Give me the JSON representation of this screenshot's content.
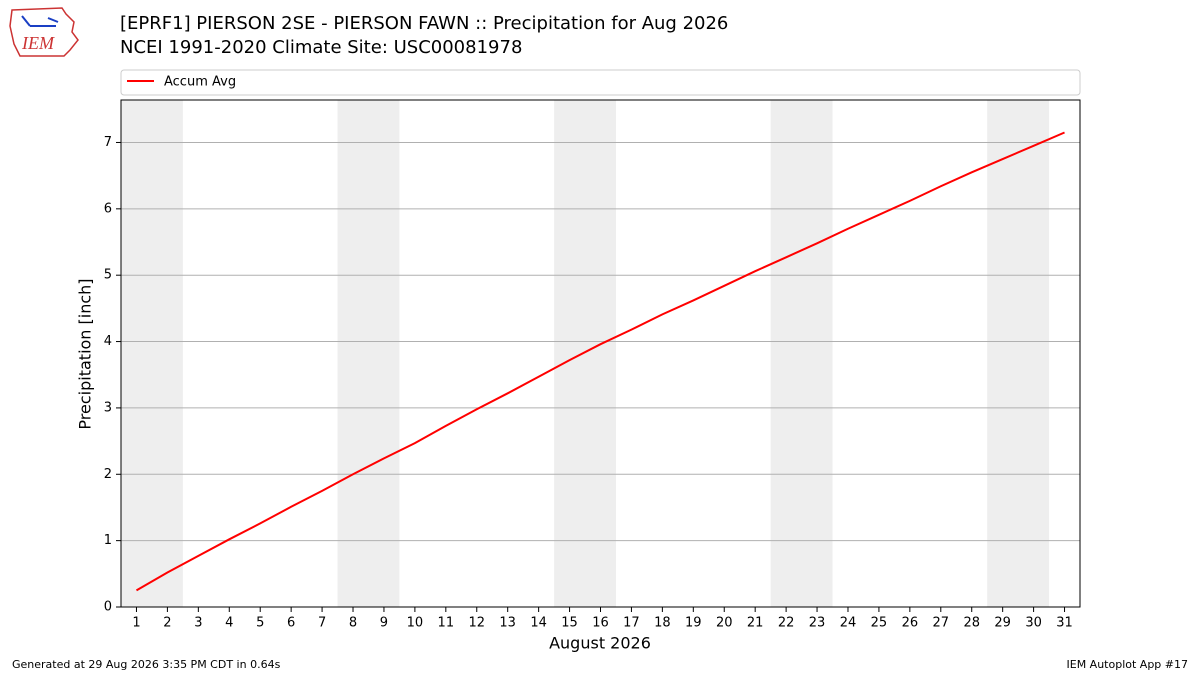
{
  "logo_text": "IEM",
  "footer_left": "Generated at 29 Aug 2026 3:35 PM CDT in 0.64s",
  "footer_right": "IEM Autoplot App #17",
  "chart_data": {
    "type": "line",
    "title": "[EPRF1] PIERSON 2SE - PIERSON FAWN :: Precipitation for Aug 2026",
    "subtitle": "NCEI 1991-2020 Climate Site: USC00081978",
    "x_label": "August 2026",
    "y_label": "Precipitation [inch]",
    "x": [
      1,
      2,
      3,
      4,
      5,
      6,
      7,
      8,
      9,
      10,
      11,
      12,
      13,
      14,
      15,
      16,
      17,
      18,
      19,
      20,
      21,
      22,
      23,
      24,
      25,
      26,
      27,
      28,
      29,
      30,
      31
    ],
    "series": [
      {
        "name": "Accum Avg",
        "color": "#ff0000",
        "values": [
          0.25,
          0.52,
          0.77,
          1.02,
          1.26,
          1.51,
          1.75,
          2.0,
          2.24,
          2.47,
          2.73,
          2.98,
          3.22,
          3.47,
          3.72,
          3.96,
          4.18,
          4.41,
          4.62,
          4.84,
          5.06,
          5.27,
          5.48,
          5.7,
          5.91,
          6.12,
          6.34,
          6.55,
          6.75,
          6.95,
          7.15
        ]
      }
    ],
    "xlim": [
      0.5,
      31.5
    ],
    "ylim": [
      0,
      7.64
    ],
    "xticks": [
      1,
      2,
      3,
      4,
      5,
      6,
      7,
      8,
      9,
      10,
      11,
      12,
      13,
      14,
      15,
      16,
      17,
      18,
      19,
      20,
      21,
      22,
      23,
      24,
      25,
      26,
      27,
      28,
      29,
      30,
      31
    ],
    "yticks": [
      0,
      1,
      2,
      3,
      4,
      5,
      6,
      7
    ],
    "grid": true,
    "legend": "top",
    "shaded_ranges": [
      [
        0.5,
        2.5
      ],
      [
        7.5,
        9.5
      ],
      [
        14.5,
        16.5
      ],
      [
        21.5,
        23.5
      ],
      [
        28.5,
        30.5
      ]
    ],
    "shade_color": "#eeeeee"
  }
}
